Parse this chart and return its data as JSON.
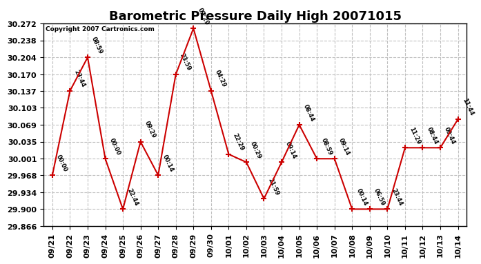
{
  "title": "Barometric Pressure Daily High 20071015",
  "copyright": "Copyright 2007 Cartronics.com",
  "x_labels": [
    "09/21",
    "09/22",
    "09/23",
    "09/24",
    "09/25",
    "09/26",
    "09/27",
    "09/28",
    "09/29",
    "09/30",
    "10/01",
    "10/02",
    "10/03",
    "10/04",
    "10/05",
    "10/06",
    "10/07",
    "10/08",
    "10/09",
    "10/10",
    "10/11",
    "10/12",
    "10/13",
    "10/14"
  ],
  "y_values": [
    29.968,
    30.137,
    30.204,
    30.001,
    29.9,
    30.035,
    29.968,
    30.17,
    30.262,
    30.137,
    30.01,
    29.994,
    29.921,
    29.994,
    30.069,
    30.001,
    30.001,
    29.9,
    29.9,
    29.9,
    30.023,
    30.023,
    30.023,
    30.08
  ],
  "point_labels": [
    "00:00",
    "23:44",
    "08:59",
    "00:00",
    "22:44",
    "09:29",
    "00:14",
    "23:59",
    "09:29",
    "04:29",
    "22:29",
    "00:29",
    "21:59",
    "09:14",
    "08:44",
    "08:59",
    "09:14",
    "00:14",
    "06:59",
    "23:44",
    "11:29",
    "08:44",
    "09:44",
    "11:44"
  ],
  "ylim_min": 29.866,
  "ylim_max": 30.272,
  "yticks": [
    29.866,
    29.9,
    29.934,
    29.968,
    30.001,
    30.035,
    30.069,
    30.103,
    30.137,
    30.17,
    30.204,
    30.238,
    30.272
  ],
  "line_color": "#cc0000",
  "marker_color": "#cc0000",
  "bg_color": "#ffffff",
  "plot_bg_color": "#ffffff",
  "grid_color": "#c0c0c0",
  "title_fontsize": 13,
  "tick_fontsize": 8
}
